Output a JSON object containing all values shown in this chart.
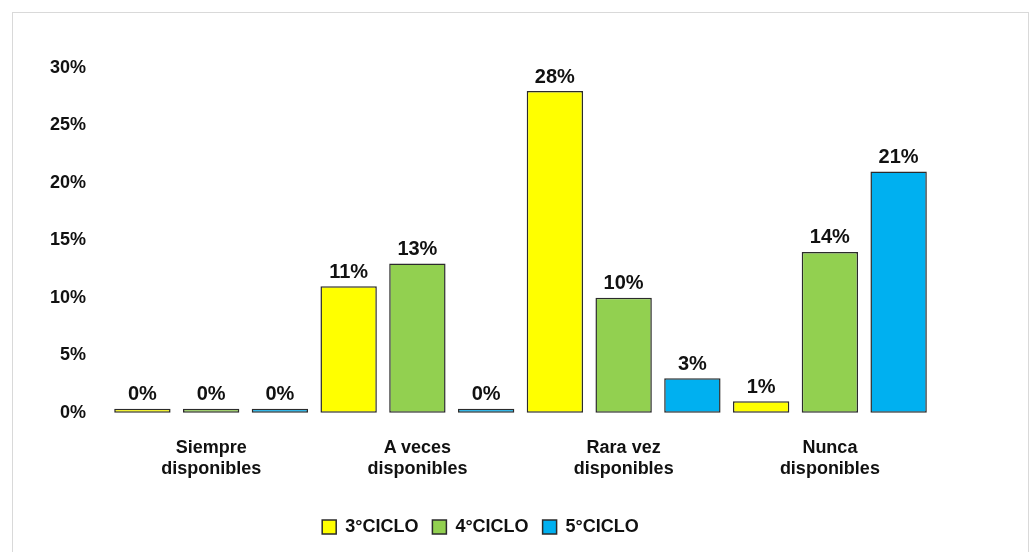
{
  "chart_data": {
    "type": "bar",
    "categories": [
      "Siempre disponibles",
      "A veces disponibles",
      "Rara vez disponibles",
      "Nunca disponibles"
    ],
    "series": [
      {
        "name": "3°CICLO",
        "color": "#ffff00",
        "values": [
          0,
          11,
          28,
          1
        ],
        "value_labels": [
          "0%",
          "11%",
          "28%",
          "1%"
        ]
      },
      {
        "name": "4°CICLO",
        "color": "#92d050",
        "values": [
          0,
          13,
          10,
          14
        ],
        "value_labels": [
          "0%",
          "13%",
          "10%",
          "14%"
        ]
      },
      {
        "name": "5°CICLO",
        "color": "#00b0f0",
        "values": [
          0,
          0,
          3,
          21
        ],
        "value_labels": [
          "0%",
          "0%",
          "3%",
          "21%"
        ]
      }
    ],
    "ylim": [
      0,
      30
    ],
    "yticks": [
      {
        "value": 0,
        "label": "0%"
      },
      {
        "value": 5,
        "label": "5%"
      },
      {
        "value": 10,
        "label": "10%"
      },
      {
        "value": 15,
        "label": "15%"
      },
      {
        "value": 20,
        "label": "20%"
      },
      {
        "value": 25,
        "label": "25%"
      },
      {
        "value": 30,
        "label": "30%"
      }
    ],
    "legend": "bottom"
  }
}
